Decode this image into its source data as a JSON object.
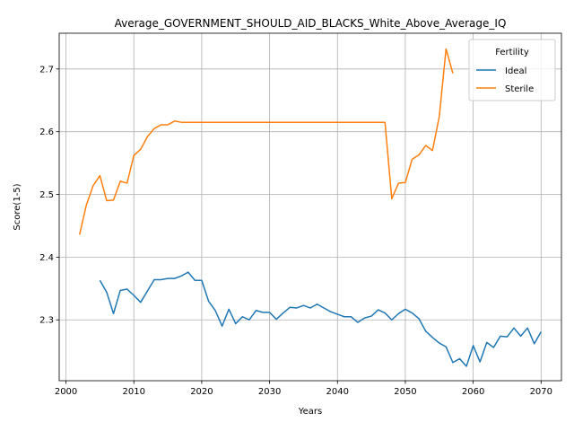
{
  "chart_data": {
    "type": "line",
    "title": "Average_GOVERNMENT_SHOULD_AID_BLACKS_White_Above_Average_IQ",
    "xlabel": "Years",
    "ylabel": "Score(1-5)",
    "xlim": [
      1999,
      2073
    ],
    "ylim": [
      2.203,
      2.757
    ],
    "xticks": [
      2000,
      2010,
      2020,
      2030,
      2040,
      2050,
      2060,
      2070
    ],
    "yticks": [
      2.3,
      2.4,
      2.5,
      2.6,
      2.7
    ],
    "grid": true,
    "legend": {
      "title": "Fertility",
      "placement": "top-right"
    },
    "series": [
      {
        "name": "Ideal",
        "color": "#1f77b4",
        "x": [
          2005,
          2006,
          2007,
          2008,
          2009,
          2010,
          2011,
          2012,
          2013,
          2014,
          2015,
          2016,
          2017,
          2018,
          2019,
          2020,
          2021,
          2022,
          2023,
          2024,
          2025,
          2026,
          2027,
          2028,
          2029,
          2030,
          2031,
          2032,
          2033,
          2034,
          2035,
          2036,
          2037,
          2038,
          2039,
          2040,
          2041,
          2042,
          2043,
          2044,
          2045,
          2046,
          2047,
          2048,
          2049,
          2050,
          2051,
          2052,
          2053,
          2054,
          2055,
          2056,
          2057,
          2058,
          2059,
          2060,
          2061,
          2062,
          2063,
          2064,
          2065,
          2066,
          2067,
          2068,
          2069,
          2070
        ],
        "y": [
          2.363,
          2.344,
          2.31,
          2.347,
          2.349,
          2.339,
          2.328,
          2.346,
          2.364,
          2.364,
          2.366,
          2.366,
          2.37,
          2.376,
          2.363,
          2.363,
          2.33,
          2.315,
          2.29,
          2.317,
          2.294,
          2.305,
          2.3,
          2.315,
          2.312,
          2.312,
          2.301,
          2.311,
          2.32,
          2.319,
          2.323,
          2.319,
          2.325,
          2.319,
          2.313,
          2.309,
          2.305,
          2.305,
          2.296,
          2.303,
          2.306,
          2.316,
          2.311,
          2.3,
          2.31,
          2.317,
          2.311,
          2.302,
          2.282,
          2.272,
          2.263,
          2.257,
          2.232,
          2.238,
          2.226,
          2.259,
          2.233,
          2.264,
          2.256,
          2.274,
          2.273,
          2.287,
          2.274,
          2.287,
          2.262,
          2.281
        ]
      },
      {
        "name": "Sterile",
        "color": "#ff7f0e",
        "x": [
          2002,
          2003,
          2004,
          2005,
          2006,
          2007,
          2008,
          2009,
          2010,
          2011,
          2012,
          2013,
          2014,
          2015,
          2016,
          2017,
          2018,
          2019,
          2020,
          2021,
          2022,
          2023,
          2024,
          2025,
          2026,
          2027,
          2028,
          2029,
          2030,
          2031,
          2032,
          2033,
          2034,
          2035,
          2036,
          2037,
          2038,
          2039,
          2040,
          2041,
          2042,
          2043,
          2044,
          2045,
          2046,
          2047,
          2048,
          2049,
          2050,
          2051,
          2052,
          2053,
          2054,
          2055,
          2056,
          2057
        ],
        "y": [
          2.436,
          2.483,
          2.514,
          2.53,
          2.49,
          2.491,
          2.521,
          2.518,
          2.562,
          2.572,
          2.592,
          2.605,
          2.611,
          2.611,
          2.617,
          2.615,
          2.615,
          2.615,
          2.615,
          2.615,
          2.615,
          2.615,
          2.615,
          2.615,
          2.615,
          2.615,
          2.615,
          2.615,
          2.615,
          2.615,
          2.615,
          2.615,
          2.615,
          2.615,
          2.615,
          2.615,
          2.615,
          2.615,
          2.615,
          2.615,
          2.615,
          2.615,
          2.615,
          2.615,
          2.615,
          2.615,
          2.493,
          2.518,
          2.519,
          2.556,
          2.563,
          2.578,
          2.57,
          2.624,
          2.732,
          2.693
        ]
      }
    ]
  }
}
